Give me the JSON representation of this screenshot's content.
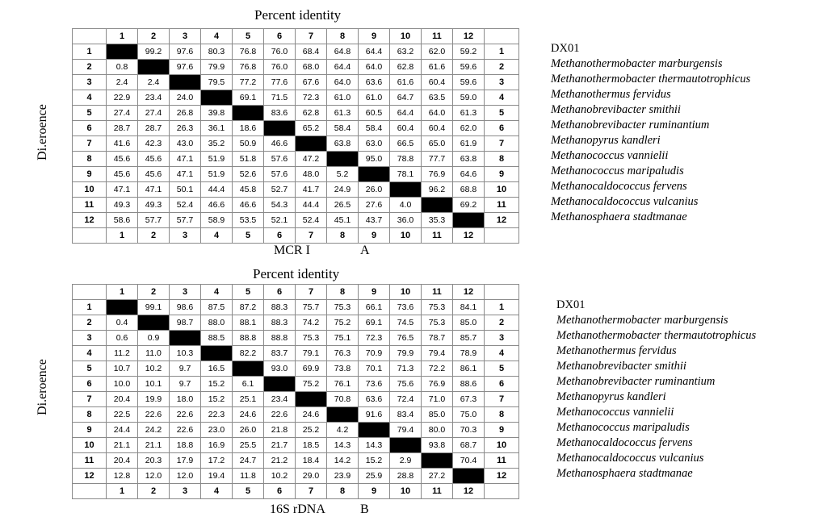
{
  "panels": [
    {
      "id": "A",
      "title": "Percent identity",
      "ylabel": "Di.eroence",
      "caption": "MCR I",
      "letter": "A",
      "col_headers": [
        "1",
        "2",
        "3",
        "4",
        "5",
        "6",
        "7",
        "8",
        "9",
        "10",
        "11",
        "12"
      ],
      "rows": [
        [
          "",
          "99.2",
          "97.6",
          "80.3",
          "76.8",
          "76.0",
          "68.4",
          "64.8",
          "64.4",
          "63.2",
          "62.0",
          "59.2"
        ],
        [
          "0.8",
          "",
          "97.6",
          "79.9",
          "76.8",
          "76.0",
          "68.0",
          "64.4",
          "64.0",
          "62.8",
          "61.6",
          "59.6"
        ],
        [
          "2.4",
          "2.4",
          "",
          "79.5",
          "77.2",
          "77.6",
          "67.6",
          "64.0",
          "63.6",
          "61.6",
          "60.4",
          "59.6"
        ],
        [
          "22.9",
          "23.4",
          "24.0",
          "",
          "69.1",
          "71.5",
          "72.3",
          "61.0",
          "61.0",
          "64.7",
          "63.5",
          "59.0"
        ],
        [
          "27.4",
          "27.4",
          "26.8",
          "39.8",
          "",
          "83.6",
          "62.8",
          "61.3",
          "60.5",
          "64.4",
          "64.0",
          "61.3"
        ],
        [
          "28.7",
          "28.7",
          "26.3",
          "36.1",
          "18.6",
          "",
          "65.2",
          "58.4",
          "58.4",
          "60.4",
          "60.4",
          "62.0"
        ],
        [
          "41.6",
          "42.3",
          "43.0",
          "35.2",
          "50.9",
          "46.6",
          "",
          "63.8",
          "63.0",
          "66.5",
          "65.0",
          "61.9"
        ],
        [
          "45.6",
          "45.6",
          "47.1",
          "51.9",
          "51.8",
          "57.6",
          "47.2",
          "",
          "95.0",
          "78.8",
          "77.7",
          "63.8"
        ],
        [
          "45.6",
          "45.6",
          "47.1",
          "51.9",
          "52.6",
          "57.6",
          "48.0",
          "5.2",
          "",
          "78.1",
          "76.9",
          "64.6"
        ],
        [
          "47.1",
          "47.1",
          "50.1",
          "44.4",
          "45.8",
          "52.7",
          "41.7",
          "24.9",
          "26.0",
          "",
          "96.2",
          "68.8"
        ],
        [
          "49.3",
          "49.3",
          "52.4",
          "46.6",
          "46.6",
          "54.3",
          "44.4",
          "26.5",
          "27.6",
          "4.0",
          "",
          "69.2"
        ],
        [
          "58.6",
          "57.7",
          "57.7",
          "58.9",
          "53.5",
          "52.1",
          "52.4",
          "45.1",
          "43.7",
          "36.0",
          "35.3",
          ""
        ]
      ],
      "species": [
        "DX01",
        "Methanothermobacter marburgensis",
        "Methanothermobacter thermautotrophicus",
        "Methanothermus fervidus",
        "Methanobrevibacter smithii",
        "Methanobrevibacter ruminantium",
        "Methanopyrus kandleri",
        "Methanococcus vannielii",
        "Methanococcus maripaludis",
        "Methanocaldococcus fervens",
        "Methanocaldococcus vulcanius",
        "Methanosphaera stadtmanae"
      ]
    },
    {
      "id": "B",
      "title": "Percent identity",
      "ylabel": "Di.eroence",
      "caption": "16S rDNA",
      "letter": "B",
      "col_headers": [
        "1",
        "2",
        "3",
        "4",
        "5",
        "6",
        "7",
        "8",
        "9",
        "10",
        "11",
        "12"
      ],
      "rows": [
        [
          "",
          "99.1",
          "98.6",
          "87.5",
          "87.2",
          "88.3",
          "75.7",
          "75.3",
          "66.1",
          "73.6",
          "75.3",
          "84.1"
        ],
        [
          "0.4",
          "",
          "98.7",
          "88.0",
          "88.1",
          "88.3",
          "74.2",
          "75.2",
          "69.1",
          "74.5",
          "75.3",
          "85.0"
        ],
        [
          "0.6",
          "0.9",
          "",
          "88.5",
          "88.8",
          "88.8",
          "75.3",
          "75.1",
          "72.3",
          "76.5",
          "78.7",
          "85.7"
        ],
        [
          "11.2",
          "11.0",
          "10.3",
          "",
          "82.2",
          "83.7",
          "79.1",
          "76.3",
          "70.9",
          "79.9",
          "79.4",
          "78.9"
        ],
        [
          "10.7",
          "10.2",
          "9.7",
          "16.5",
          "",
          "93.0",
          "69.9",
          "73.8",
          "70.1",
          "71.3",
          "72.2",
          "86.1"
        ],
        [
          "10.0",
          "10.1",
          "9.7",
          "15.2",
          "6.1",
          "",
          "75.2",
          "76.1",
          "73.6",
          "75.6",
          "76.9",
          "88.6"
        ],
        [
          "20.4",
          "19.9",
          "18.0",
          "15.2",
          "25.1",
          "23.4",
          "",
          "70.8",
          "63.6",
          "72.4",
          "71.0",
          "67.3"
        ],
        [
          "22.5",
          "22.6",
          "22.6",
          "22.3",
          "24.6",
          "22.6",
          "24.6",
          "",
          "91.6",
          "83.4",
          "85.0",
          "75.0"
        ],
        [
          "24.4",
          "24.2",
          "22.6",
          "23.0",
          "26.0",
          "21.8",
          "25.2",
          "4.2",
          "",
          "79.4",
          "80.0",
          "70.3"
        ],
        [
          "21.1",
          "21.1",
          "18.8",
          "16.9",
          "25.5",
          "21.7",
          "18.5",
          "14.3",
          "14.3",
          "",
          "93.8",
          "68.7"
        ],
        [
          "20.4",
          "20.3",
          "17.9",
          "17.2",
          "24.7",
          "21.2",
          "18.4",
          "14.2",
          "15.2",
          "2.9",
          "",
          "70.4"
        ],
        [
          "12.8",
          "12.0",
          "12.0",
          "19.4",
          "11.8",
          "10.2",
          "29.0",
          "23.9",
          "25.9",
          "28.8",
          "27.2",
          ""
        ]
      ],
      "species": [
        "DX01",
        "Methanothermobacter marburgensis",
        "Methanothermobacter thermautotrophicus",
        "Methanothermus fervidus",
        "Methanobrevibacter smithii",
        "Methanobrevibacter ruminantium",
        "Methanopyrus kandleri",
        "Methanococcus vannielii",
        "Methanococcus maripaludis",
        "Methanocaldococcus fervens",
        "Methanocaldococcus vulcanius",
        "Methanosphaera stadtmanae"
      ]
    }
  ]
}
